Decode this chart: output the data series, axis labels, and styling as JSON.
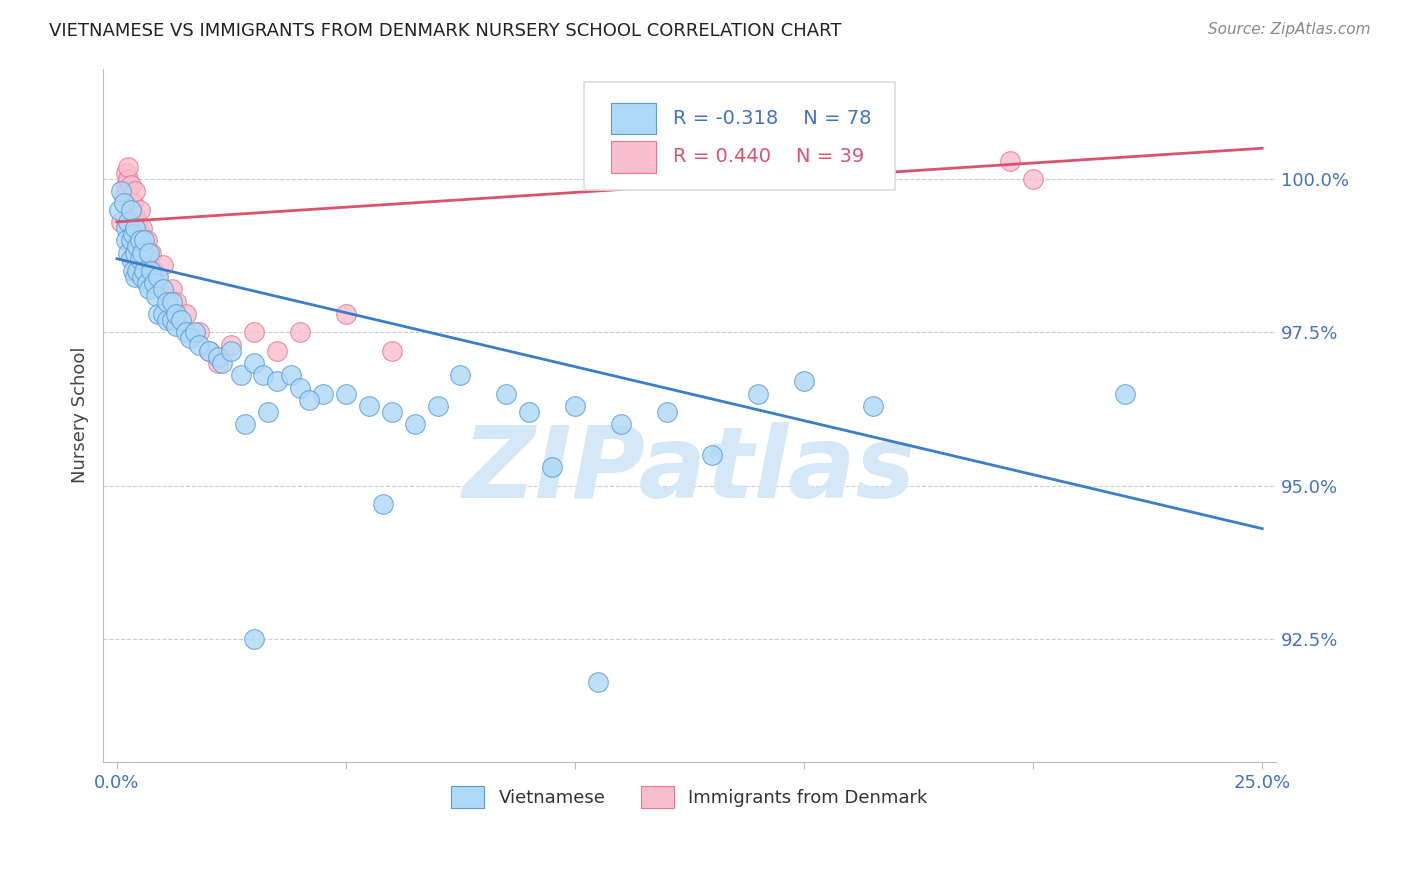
{
  "title": "VIETNAMESE VS IMMIGRANTS FROM DENMARK NURSERY SCHOOL CORRELATION CHART",
  "source": "Source: ZipAtlas.com",
  "ylabel": "Nursery School",
  "watermark": "ZIPatlas",
  "legend_blue_r": "R = -0.318",
  "legend_blue_n": "N = 78",
  "legend_pink_r": "R = 0.440",
  "legend_pink_n": "N = 39",
  "legend_blue_label": "Vietnamese",
  "legend_pink_label": "Immigrants from Denmark",
  "xlim": [
    -0.3,
    25.3
  ],
  "ylim": [
    90.5,
    101.8
  ],
  "yticks": [
    92.5,
    95.0,
    97.5,
    100.0
  ],
  "ytick_labels": [
    "92.5%",
    "95.0%",
    "97.5%",
    "100.0%"
  ],
  "xticks": [
    0.0,
    5.0,
    10.0,
    15.0,
    20.0,
    25.0
  ],
  "xtick_labels": [
    "0.0%",
    "",
    "",
    "",
    "",
    "25.0%"
  ],
  "blue_color": "#ADD8F7",
  "pink_color": "#F9BECE",
  "blue_edge_color": "#5B9BD5",
  "pink_edge_color": "#E8778A",
  "blue_line_color": "#3A7DC9",
  "pink_line_color": "#D9546B",
  "axis_label_color": "#4472C4",
  "grid_color": "#CCCCCC",
  "title_color": "#222222",
  "watermark_color": "#D5E8F8",
  "blue_x": [
    0.05,
    0.1,
    0.15,
    0.2,
    0.2,
    0.25,
    0.25,
    0.3,
    0.3,
    0.3,
    0.35,
    0.35,
    0.4,
    0.4,
    0.4,
    0.45,
    0.45,
    0.5,
    0.5,
    0.55,
    0.55,
    0.6,
    0.6,
    0.65,
    0.7,
    0.7,
    0.75,
    0.8,
    0.85,
    0.9,
    0.9,
    1.0,
    1.0,
    1.1,
    1.1,
    1.2,
    1.2,
    1.3,
    1.3,
    1.4,
    1.5,
    1.6,
    1.7,
    1.8,
    2.0,
    2.2,
    2.3,
    2.5,
    2.7,
    3.0,
    3.2,
    3.5,
    3.8,
    4.0,
    4.5,
    5.0,
    5.5,
    6.0,
    6.5,
    7.0,
    7.5,
    8.5,
    9.0,
    10.0,
    11.0,
    12.0,
    14.0,
    15.0,
    16.5,
    22.0,
    2.8,
    3.3,
    4.2,
    5.8,
    9.5,
    13.0,
    3.0,
    10.5
  ],
  "blue_y": [
    99.5,
    99.8,
    99.6,
    99.2,
    99.0,
    99.3,
    98.8,
    99.0,
    99.5,
    98.7,
    99.1,
    98.5,
    98.8,
    99.2,
    98.4,
    98.9,
    98.5,
    98.7,
    99.0,
    98.4,
    98.8,
    98.5,
    99.0,
    98.3,
    98.8,
    98.2,
    98.5,
    98.3,
    98.1,
    97.8,
    98.4,
    97.8,
    98.2,
    97.7,
    98.0,
    97.7,
    98.0,
    97.6,
    97.8,
    97.7,
    97.5,
    97.4,
    97.5,
    97.3,
    97.2,
    97.1,
    97.0,
    97.2,
    96.8,
    97.0,
    96.8,
    96.7,
    96.8,
    96.6,
    96.5,
    96.5,
    96.3,
    96.2,
    96.0,
    96.3,
    96.8,
    96.5,
    96.2,
    96.3,
    96.0,
    96.2,
    96.5,
    96.7,
    96.3,
    96.5,
    96.0,
    96.2,
    96.4,
    94.7,
    95.3,
    95.5,
    92.5,
    91.8
  ],
  "pink_x": [
    0.1,
    0.15,
    0.2,
    0.2,
    0.25,
    0.25,
    0.25,
    0.3,
    0.3,
    0.35,
    0.35,
    0.4,
    0.4,
    0.45,
    0.5,
    0.5,
    0.55,
    0.6,
    0.65,
    0.7,
    0.75,
    0.8,
    0.9,
    1.0,
    1.1,
    1.2,
    1.3,
    1.5,
    1.8,
    2.0,
    2.2,
    2.5,
    3.0,
    3.5,
    4.0,
    5.0,
    6.0,
    19.5,
    20.0
  ],
  "pink_y": [
    99.3,
    99.7,
    100.1,
    99.9,
    100.0,
    99.8,
    100.2,
    99.5,
    99.9,
    99.3,
    99.6,
    99.8,
    99.4,
    99.3,
    99.5,
    99.1,
    99.2,
    98.8,
    99.0,
    98.7,
    98.8,
    98.5,
    98.3,
    98.6,
    98.1,
    98.2,
    98.0,
    97.8,
    97.5,
    97.2,
    97.0,
    97.3,
    97.5,
    97.2,
    97.5,
    97.8,
    97.2,
    100.3,
    100.0
  ],
  "blue_trend_x": [
    0.0,
    25.0
  ],
  "blue_trend_y": [
    98.7,
    94.3
  ],
  "pink_trend_x": [
    0.0,
    25.0
  ],
  "pink_trend_y": [
    99.3,
    100.5
  ]
}
